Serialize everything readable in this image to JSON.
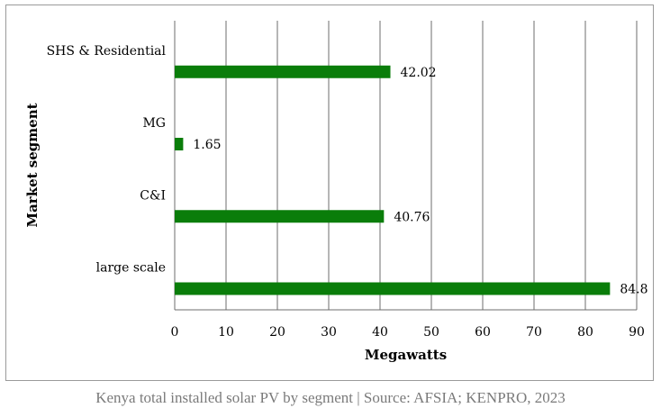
{
  "chart_data": {
    "type": "bar",
    "orientation": "horizontal",
    "categories": [
      "SHS & Residential",
      "MG",
      "C&I",
      "large scale"
    ],
    "values": [
      42.02,
      1.65,
      40.76,
      84.8
    ],
    "value_labels": [
      "42.02",
      "1.65",
      "40.76",
      "84.8"
    ],
    "xlabel": "Megawatts",
    "ylabel": "Market segment",
    "xlim": [
      0,
      90
    ],
    "xticks": [
      0,
      10,
      20,
      30,
      40,
      50,
      60,
      70,
      80,
      90
    ],
    "grid": "vertical",
    "bar_color": "#0a7d0a",
    "legend": "none"
  },
  "caption": "Kenya total installed solar PV by segment | Source: AFSIA; KENPRO, 2023"
}
